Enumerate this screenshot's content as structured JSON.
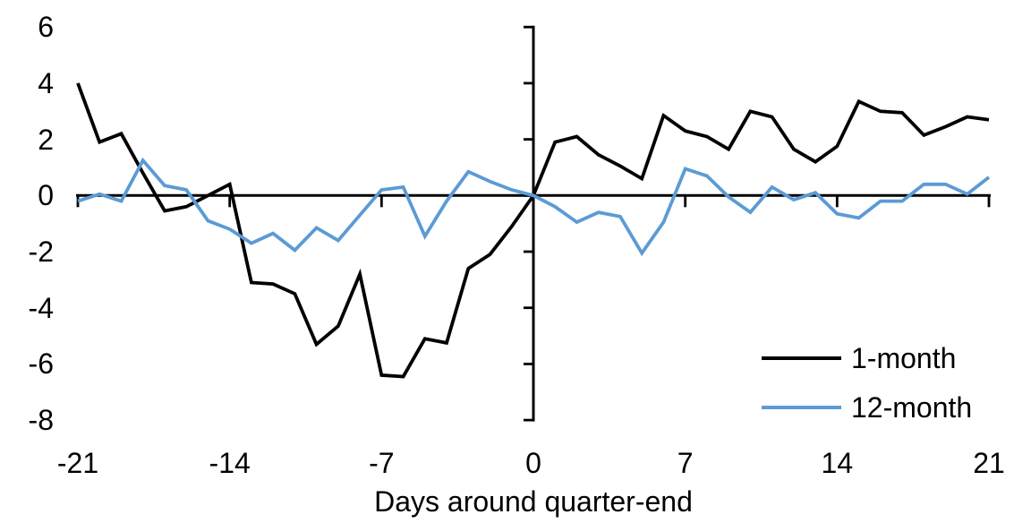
{
  "chart_data": {
    "type": "line",
    "title": "",
    "xlabel": "Days around quarter-end",
    "ylabel": "",
    "xlim": [
      -21,
      21
    ],
    "ylim": [
      -8,
      6
    ],
    "x_ticks": [
      -21,
      -14,
      -7,
      0,
      7,
      14,
      21
    ],
    "y_ticks": [
      6,
      4,
      2,
      0,
      -2,
      -4,
      -6,
      -8
    ],
    "grid": false,
    "legend_position": "inside-bottom-right",
    "x": [
      -21,
      -20,
      -19,
      -18,
      -17,
      -16,
      -15,
      -14,
      -13,
      -12,
      -11,
      -10,
      -9,
      -8,
      -7,
      -6,
      -5,
      -4,
      -3,
      -2,
      -1,
      0,
      1,
      2,
      3,
      4,
      5,
      6,
      7,
      8,
      9,
      10,
      11,
      12,
      13,
      14,
      15,
      16,
      17,
      18,
      19,
      20,
      21
    ],
    "series": [
      {
        "name": "1-month",
        "color": "#000000",
        "values": [
          4.0,
          1.9,
          2.2,
          0.8,
          -0.55,
          -0.4,
          0.0,
          0.4,
          -3.1,
          -3.15,
          -3.5,
          -5.3,
          -4.65,
          -2.8,
          -6.4,
          -6.45,
          -5.1,
          -5.25,
          -2.6,
          -2.1,
          -1.1,
          0.0,
          1.9,
          2.1,
          1.45,
          1.05,
          0.6,
          2.85,
          2.3,
          2.1,
          1.65,
          3.0,
          2.8,
          1.65,
          1.2,
          1.75,
          3.35,
          3.0,
          2.95,
          2.15,
          2.45,
          2.8,
          2.7
        ]
      },
      {
        "name": "12-month",
        "color": "#5B9BD5",
        "values": [
          -0.2,
          0.05,
          -0.2,
          1.25,
          0.35,
          0.2,
          -0.9,
          -1.2,
          -1.7,
          -1.35,
          -1.95,
          -1.15,
          -1.6,
          -0.7,
          0.2,
          0.3,
          -1.45,
          -0.2,
          0.85,
          0.5,
          0.2,
          0.0,
          -0.4,
          -0.95,
          -0.6,
          -0.75,
          -2.05,
          -0.95,
          0.95,
          0.7,
          -0.05,
          -0.6,
          0.3,
          -0.15,
          0.1,
          -0.65,
          -0.8,
          -0.2,
          -0.2,
          0.4,
          0.4,
          0.05,
          0.65
        ]
      }
    ]
  }
}
